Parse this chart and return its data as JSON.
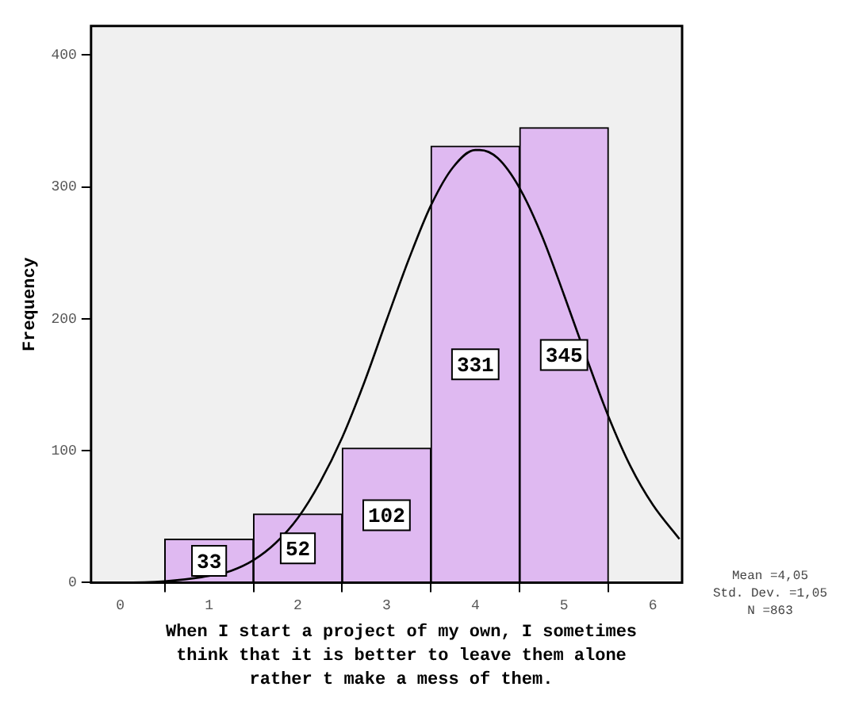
{
  "chart_data": {
    "type": "histogram",
    "xlabel": "When I start a project of my own, I sometimes think that it is better to leave them alone rather t make a mess of them.",
    "ylabel": "Frequency",
    "bins": [
      0.5,
      1.5,
      2.5,
      3.5,
      4.5,
      5.5
    ],
    "values": [
      33,
      52,
      102,
      331,
      345
    ],
    "color": "#dfb9f1",
    "value_labels": [
      "33",
      "52",
      "102",
      "331",
      "345"
    ],
    "xlim": [
      -0.33,
      6.33
    ],
    "xticks": [
      0,
      1,
      2,
      3,
      4,
      5,
      6
    ],
    "ylim": [
      0,
      422
    ],
    "yticks": [
      0,
      100,
      200,
      300,
      400
    ],
    "grid": false,
    "legend": false,
    "marker": "none",
    "annotations": [
      "Mean =4,05",
      "Std. Dev. =1,05",
      "N =863"
    ],
    "series": [
      {
        "type": "line",
        "color": "#000000",
        "x": [
          -0.3,
          0,
          0.5,
          1,
          1.25,
          1.5,
          1.75,
          2,
          2.25,
          2.5,
          2.75,
          3,
          3.25,
          3.5,
          3.75,
          4,
          4.05,
          4.25,
          4.5,
          4.75,
          5,
          5.25,
          5.5,
          5.75,
          6,
          6.3
        ],
        "values": [
          0,
          0,
          1,
          5,
          9,
          17,
          30,
          49,
          76,
          110,
          152,
          199,
          245,
          286,
          315,
          328,
          328,
          322,
          299,
          263,
          218,
          171,
          126,
          88,
          59,
          33
        ]
      }
    ]
  }
}
